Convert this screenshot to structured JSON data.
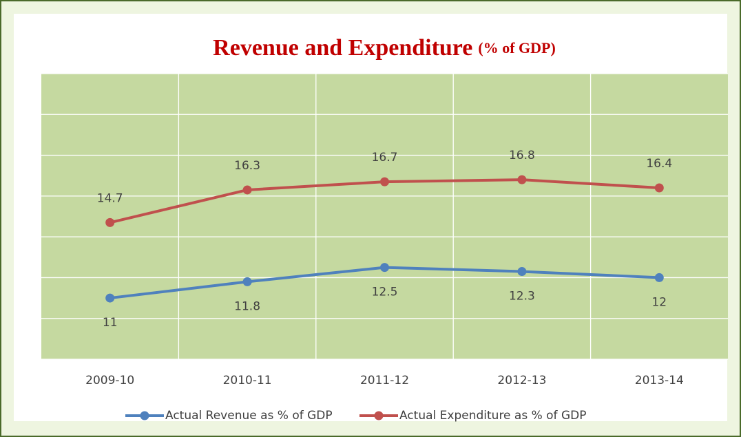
{
  "chart_data": {
    "type": "line",
    "title": "Revenue and Expenditure",
    "subtitle": "(% of GDP)",
    "categories": [
      "2009-10",
      "2010-11",
      "2011-12",
      "2012-13",
      "2013-14"
    ],
    "series": [
      {
        "name": "Actual Revenue as % of GDP",
        "color": "#4f81bd",
        "values": [
          11,
          11.8,
          12.5,
          12.3,
          12
        ]
      },
      {
        "name": "Actual Expenditure as % of GDP",
        "color": "#c0504d",
        "values": [
          14.7,
          16.3,
          16.7,
          16.8,
          16.4
        ]
      }
    ],
    "ylim": [
      8,
      22
    ],
    "yticks": [
      8,
      10,
      12,
      14,
      16,
      18,
      20,
      22
    ],
    "grid": true,
    "legend": "bottom"
  }
}
